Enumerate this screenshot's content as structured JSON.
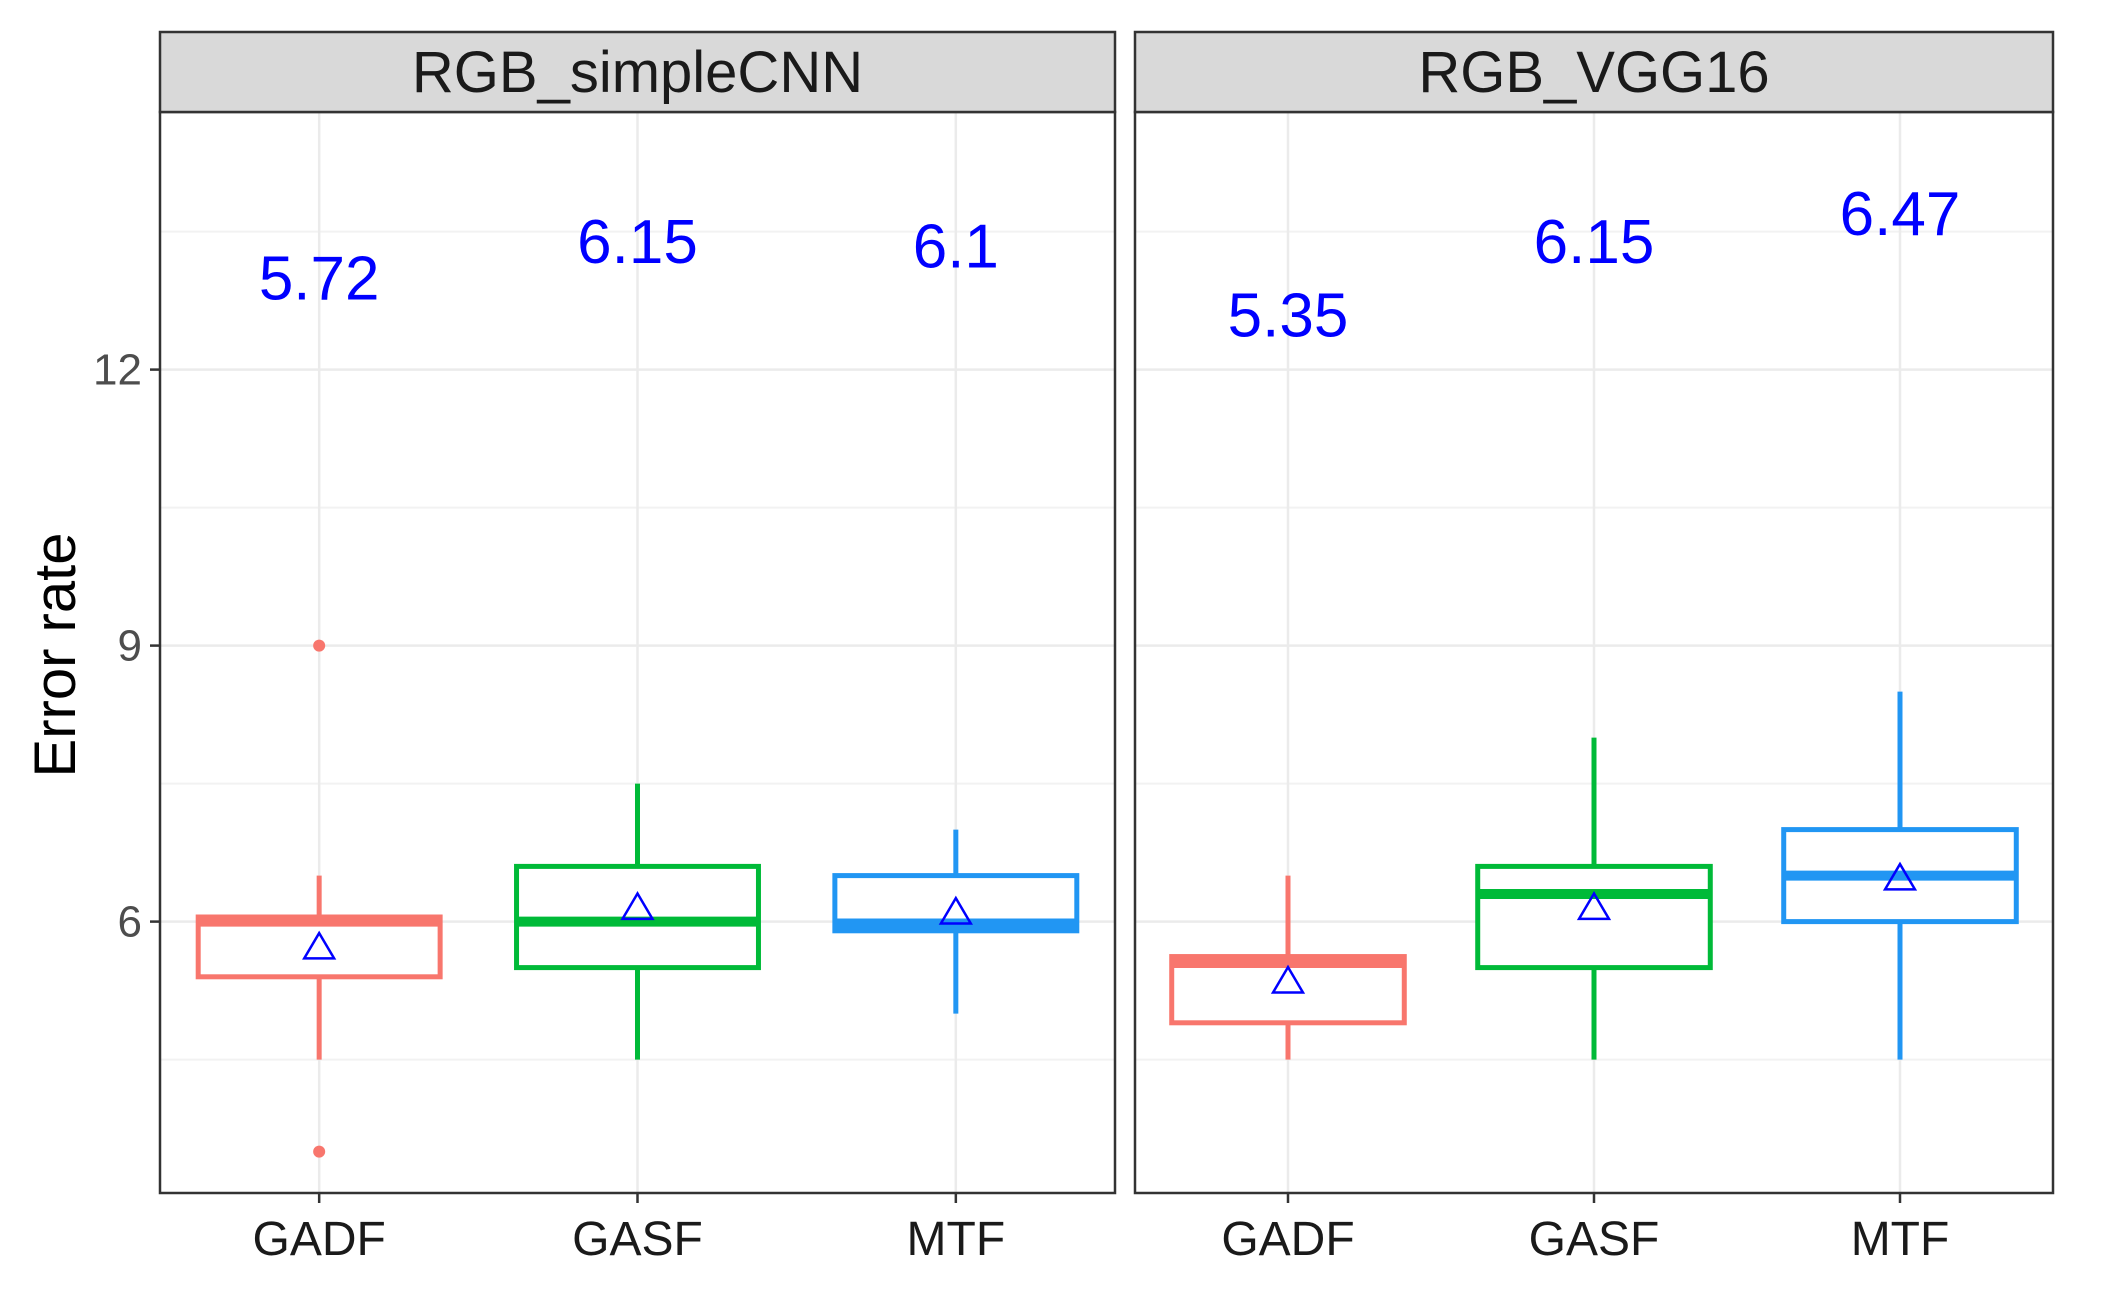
{
  "chart_data": {
    "type": "boxplot",
    "ylabel": "Error rate",
    "ylim": [
      3.05,
      14.8
    ],
    "yticks": [
      6,
      9,
      12
    ],
    "ytick_labels": [
      "6",
      "9",
      "12"
    ],
    "minor_gridlines": [
      4.5,
      7.5,
      10.5,
      13.5
    ],
    "categories": [
      "GADF",
      "GASF",
      "MTF"
    ],
    "colors": {
      "GADF": "#F8766D",
      "GASF": "#00BA38",
      "MTF": "#2196F3"
    },
    "mean_marker_color": "#0000FF",
    "mean_label_color": "#0000FF",
    "panels": [
      {
        "title": "RGB_simpleCNN",
        "boxes": [
          {
            "category": "GADF",
            "whisker_low": 4.5,
            "q1": 5.4,
            "median": 6.0,
            "q3": 6.05,
            "whisker_high": 6.5,
            "mean": 5.72,
            "mean_label": "5.72",
            "label_y": 13.0,
            "outliers": [
              9.0,
              3.5
            ]
          },
          {
            "category": "GASF",
            "whisker_low": 4.5,
            "q1": 5.5,
            "median": 6.0,
            "q3": 6.6,
            "whisker_high": 7.5,
            "mean": 6.15,
            "mean_label": "6.15",
            "label_y": 13.4,
            "outliers": []
          },
          {
            "category": "MTF",
            "whisker_low": 5.0,
            "q1": 5.9,
            "median": 5.98,
            "q3": 6.5,
            "whisker_high": 7.0,
            "mean": 6.1,
            "mean_label": "6.1",
            "label_y": 13.35,
            "outliers": []
          }
        ]
      },
      {
        "title": "RGB_VGG16",
        "boxes": [
          {
            "category": "GADF",
            "whisker_low": 4.5,
            "q1": 4.9,
            "median": 5.55,
            "q3": 5.62,
            "whisker_high": 6.5,
            "mean": 5.35,
            "mean_label": "5.35",
            "label_y": 12.6,
            "outliers": []
          },
          {
            "category": "GASF",
            "whisker_low": 4.5,
            "q1": 5.5,
            "median": 6.3,
            "q3": 6.6,
            "whisker_high": 8.0,
            "mean": 6.15,
            "mean_label": "6.15",
            "label_y": 13.4,
            "outliers": []
          },
          {
            "category": "MTF",
            "whisker_low": 4.5,
            "q1": 6.0,
            "median": 6.5,
            "q3": 7.0,
            "whisker_high": 8.5,
            "mean": 6.47,
            "mean_label": "6.47",
            "label_y": 13.7,
            "outliers": []
          }
        ]
      }
    ]
  }
}
